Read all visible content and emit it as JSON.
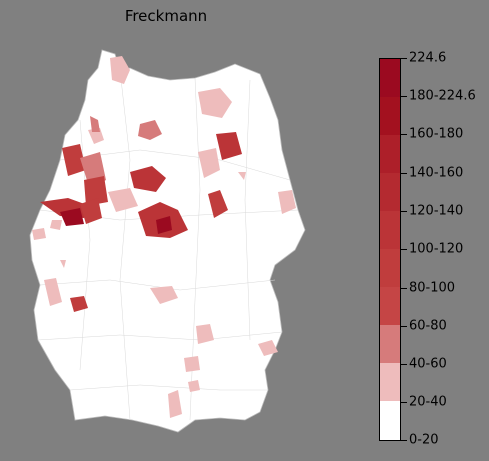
{
  "title": "Freckmann",
  "legend": {
    "labels": [
      "224.6",
      "180-224.6",
      "160-180",
      "140-160",
      "120-140",
      "100-120",
      "80-100",
      "60-80",
      "40-60",
      "20-40",
      "0-20"
    ],
    "colors": [
      "#9b0a20",
      "#a3111f",
      "#ad1f29",
      "#b42a30",
      "#bb3437",
      "#c03d3d",
      "#c54545",
      "#d67b7b",
      "#eebcbc",
      "#ffffff"
    ]
  },
  "colors": {
    "background": "#808080",
    "land": "#ffffff",
    "border": "#c8c8c8",
    "low": "#eebcbc",
    "mid": "#d67b7b",
    "high": "#c03d3d",
    "max": "#9b0a20"
  }
}
